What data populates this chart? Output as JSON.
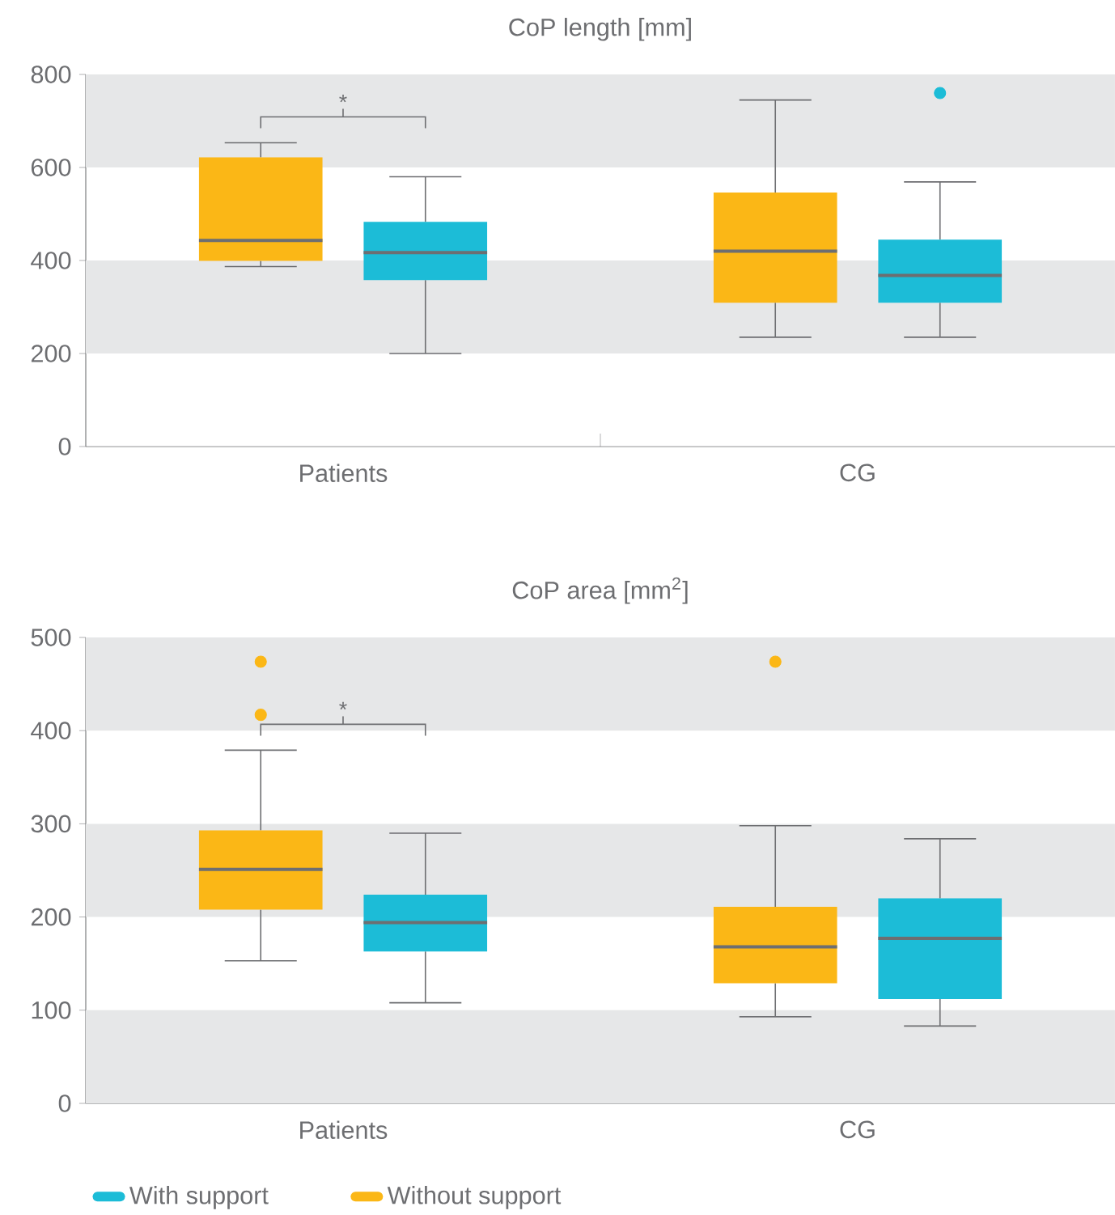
{
  "chart_data": [
    {
      "type": "box",
      "title": "CoP length [mm]",
      "categories": [
        "Patients",
        "CG"
      ],
      "ylim": [
        0,
        800
      ],
      "yticks": [
        0,
        200,
        400,
        600,
        800
      ],
      "legend": false,
      "bands": [
        {
          "axis": "y",
          "from": 200,
          "to": 400,
          "color": "#e6e7e8"
        },
        {
          "axis": "y",
          "from": 600,
          "to": 800,
          "color": "#e6e7e8"
        }
      ],
      "annotations": [
        "*"
      ],
      "series": [
        {
          "color": "#fbb716",
          "boxes": [
            {
              "low": 387,
              "q1": 399,
              "median": 443,
              "q3": 622,
              "high": 653
            },
            {
              "low": 235,
              "q1": 309,
              "median": 420,
              "q3": 546,
              "high": 745
            }
          ]
        },
        {
          "color": "#1cbcd7",
          "boxes": [
            {
              "low": 200,
              "q1": 358,
              "median": 417,
              "q3": 483,
              "high": 580
            },
            {
              "low": 235,
              "q1": 309,
              "median": 368,
              "q3": 445,
              "high": 569,
              "outliers": [
                760
              ]
            }
          ]
        }
      ]
    },
    {
      "type": "box",
      "title": "CoP area [mm$^{2}$]",
      "categories": [
        "Patients",
        "CG"
      ],
      "ylim": [
        0,
        500
      ],
      "yticks": [
        0,
        100,
        200,
        300,
        400,
        500
      ],
      "legend": "bottom left",
      "bands": [
        {
          "axis": "y",
          "from": 0,
          "to": 100,
          "color": "#e6e7e8"
        },
        {
          "axis": "y",
          "from": 200,
          "to": 300,
          "color": "#e6e7e8"
        },
        {
          "axis": "y",
          "from": 400,
          "to": 500,
          "color": "#e6e7e8"
        }
      ],
      "annotations": [
        "*"
      ],
      "series": [
        {
          "name": "Without support",
          "color": "#fbb716",
          "boxes": [
            {
              "low": 153,
              "q1": 208,
              "median": 251,
              "q3": 293,
              "high": 379,
              "outliers": [
                474,
                417
              ]
            },
            {
              "low": 93,
              "q1": 129,
              "median": 168,
              "q3": 211,
              "high": 298,
              "outliers": [
                474
              ]
            }
          ]
        },
        {
          "name": "With support",
          "color": "#1cbcd7",
          "boxes": [
            {
              "low": 108,
              "q1": 163,
              "median": 194,
              "q3": 224,
              "high": 290
            },
            {
              "low": 83,
              "q1": 112,
              "median": 177,
              "q3": 220,
              "high": 284
            }
          ]
        }
      ]
    }
  ]
}
